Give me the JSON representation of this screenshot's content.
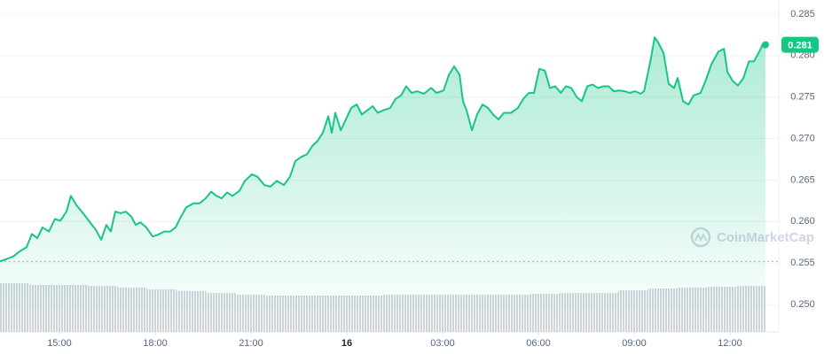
{
  "chart_data": {
    "type": "line",
    "x": [
      13.14,
      13.36,
      13.56,
      13.75,
      13.97,
      14.14,
      14.31,
      14.47,
      14.67,
      14.86,
      15.03,
      15.22,
      15.36,
      15.53,
      15.7,
      15.92,
      16.14,
      16.31,
      16.47,
      16.61,
      16.75,
      16.92,
      17.08,
      17.25,
      17.39,
      17.53,
      17.72,
      17.92,
      18.08,
      18.28,
      18.47,
      18.64,
      18.81,
      18.97,
      19.2,
      19.39,
      19.58,
      19.75,
      19.92,
      20.08,
      20.25,
      20.42,
      20.64,
      20.81,
      21.03,
      21.2,
      21.42,
      21.61,
      21.81,
      22.03,
      22.22,
      22.39,
      22.58,
      22.75,
      22.92,
      23.08,
      23.25,
      23.42,
      23.53,
      23.64,
      23.81,
      23.97,
      24.14,
      24.31,
      24.47,
      24.64,
      24.81,
      24.97,
      25.14,
      25.36,
      25.53,
      25.7,
      25.86,
      26.03,
      26.2,
      26.42,
      26.64,
      26.81,
      27.03,
      27.2,
      27.36,
      27.53,
      27.64,
      27.75,
      27.92,
      28.08,
      28.25,
      28.42,
      28.58,
      28.75,
      28.92,
      29.14,
      29.36,
      29.53,
      29.7,
      29.86,
      30.03,
      30.2,
      30.36,
      30.53,
      30.7,
      30.86,
      31.03,
      31.2,
      31.36,
      31.53,
      31.7,
      31.86,
      32.03,
      32.2,
      32.36,
      32.53,
      32.7,
      32.86,
      33.03,
      33.2,
      33.31,
      33.42,
      33.53,
      33.64,
      33.75,
      33.92,
      34.08,
      34.25,
      34.36,
      34.53,
      34.7,
      34.86,
      35.08,
      35.25,
      35.42,
      35.64,
      35.81,
      35.92,
      36.09,
      36.25,
      36.42,
      36.59,
      36.75,
      36.92,
      37.03,
      37.11
    ],
    "series": [
      {
        "color": "#16c784",
        "values": [
          0.2552,
          0.2555,
          0.2558,
          0.2564,
          0.2569,
          0.2585,
          0.258,
          0.2593,
          0.2588,
          0.2603,
          0.2601,
          0.2612,
          0.2631,
          0.262,
          0.2612,
          0.2601,
          0.259,
          0.2578,
          0.2596,
          0.2588,
          0.2612,
          0.261,
          0.2612,
          0.2606,
          0.2596,
          0.2599,
          0.2593,
          0.2582,
          0.2584,
          0.2588,
          0.2588,
          0.2593,
          0.2606,
          0.2617,
          0.2622,
          0.2622,
          0.2628,
          0.2636,
          0.2631,
          0.2628,
          0.2635,
          0.2631,
          0.2637,
          0.2649,
          0.2657,
          0.2654,
          0.2644,
          0.2642,
          0.2649,
          0.2644,
          0.2654,
          0.2673,
          0.2678,
          0.2681,
          0.2691,
          0.2697,
          0.2707,
          0.2727,
          0.2707,
          0.2731,
          0.271,
          0.2723,
          0.2737,
          0.2741,
          0.2729,
          0.2734,
          0.2739,
          0.2731,
          0.2734,
          0.2737,
          0.2748,
          0.2752,
          0.2763,
          0.2755,
          0.2757,
          0.2754,
          0.2761,
          0.2755,
          0.2758,
          0.2777,
          0.2787,
          0.2777,
          0.2745,
          0.2734,
          0.271,
          0.2729,
          0.2741,
          0.2737,
          0.2729,
          0.2723,
          0.2731,
          0.2731,
          0.2737,
          0.2748,
          0.2755,
          0.2755,
          0.2784,
          0.2782,
          0.2761,
          0.2763,
          0.2755,
          0.2763,
          0.2761,
          0.275,
          0.2745,
          0.2763,
          0.2765,
          0.2761,
          0.2763,
          0.2763,
          0.2757,
          0.2758,
          0.2757,
          0.2755,
          0.2757,
          0.2754,
          0.2757,
          0.2777,
          0.2798,
          0.2822,
          0.2816,
          0.2803,
          0.2766,
          0.2761,
          0.2773,
          0.2745,
          0.2741,
          0.2752,
          0.2755,
          0.2771,
          0.279,
          0.2805,
          0.2808,
          0.278,
          0.2769,
          0.2764,
          0.2773,
          0.2793,
          0.2793,
          0.2805,
          0.2814,
          0.2813
        ]
      }
    ],
    "last_label": "0.281",
    "volume": {
      "color": "#cfd4dc",
      "lim": [
        0,
        60
      ],
      "values": [
        55,
        53,
        53,
        52,
        50,
        48,
        46,
        44,
        42,
        41,
        41,
        41,
        41,
        42,
        42,
        42,
        42,
        42,
        43,
        44,
        44,
        47,
        49,
        50,
        51,
        52
      ]
    },
    "xlim": [
      13.14,
      37.11
    ],
    "xticks": [
      {
        "value": 15,
        "label": "15:00"
      },
      {
        "value": 18,
        "label": "18:00"
      },
      {
        "value": 21,
        "label": "21:00"
      },
      {
        "value": 24,
        "label": "16"
      },
      {
        "value": 27,
        "label": "03:00"
      },
      {
        "value": 30,
        "label": "06:00"
      },
      {
        "value": 33,
        "label": "09:00"
      },
      {
        "value": 36,
        "label": "12:00"
      }
    ],
    "ylim": [
      0.2467,
      0.2867
    ],
    "yticks": [
      {
        "value": 0.25,
        "label": "0.250"
      },
      0.255,
      {
        "value": 0.26,
        "label": "0.260"
      },
      0.265,
      {
        "value": 0.27,
        "label": "0.270"
      },
      0.275,
      {
        "value": 0.28,
        "label": "0.280"
      },
      0.285
    ],
    "grid": true,
    "watermark": "CoinMarketCap"
  }
}
